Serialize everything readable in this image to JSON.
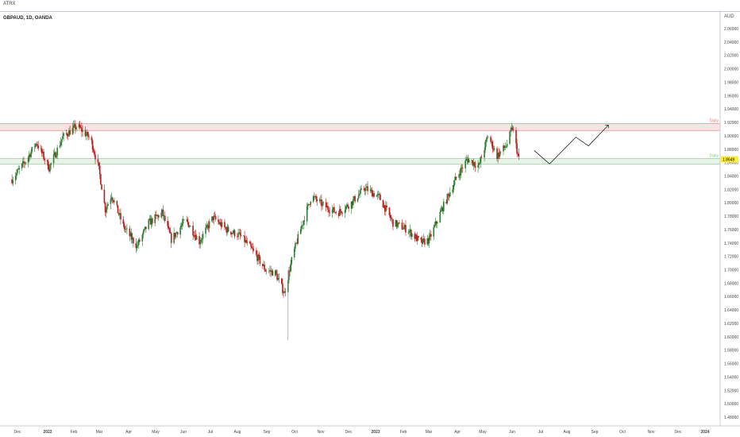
{
  "app": {
    "toolbar_label": "ATRX"
  },
  "chart_data": {
    "type": "candlestick",
    "title": "GBPAUD, 1D, OANDA",
    "currency_label": "AUD",
    "y_range": [
      1.46,
      2.08
    ],
    "y_ticks": [
      "2.06000",
      "2.04000",
      "2.02000",
      "2.00000",
      "1.98000",
      "1.96000",
      "1.94000",
      "1.92000",
      "1.90000",
      "1.88000",
      "1.86000",
      "1.84000",
      "1.82000",
      "1.80000",
      "1.78000",
      "1.76000",
      "1.74000",
      "1.72000",
      "1.70000",
      "1.68000",
      "1.66000",
      "1.64000",
      "1.62000",
      "1.60000",
      "1.58000",
      "1.56000",
      "1.54000",
      "1.52000",
      "1.50000",
      "1.48000"
    ],
    "x_ticks": [
      "Dec",
      "2022",
      "Feb",
      "Mar",
      "Apr",
      "May",
      "Jun",
      "Jul",
      "Aug",
      "Sep",
      "Oct",
      "Nov",
      "Dec",
      "2023",
      "Feb",
      "Mar",
      "Apr",
      "May",
      "Jun",
      "Jul",
      "Aug",
      "Sep",
      "Oct",
      "Nov",
      "Dec",
      "2024"
    ],
    "last_price": "1.8649",
    "price_path": [
      {
        "date": "2021-11-25",
        "price": 1.835
      },
      {
        "date": "2021-12-10",
        "price": 1.862
      },
      {
        "date": "2021-12-22",
        "price": 1.89
      },
      {
        "date": "2022-01-05",
        "price": 1.852
      },
      {
        "date": "2022-01-20",
        "price": 1.898
      },
      {
        "date": "2022-02-05",
        "price": 1.915
      },
      {
        "date": "2022-02-20",
        "price": 1.895
      },
      {
        "date": "2022-03-01",
        "price": 1.85
      },
      {
        "date": "2022-03-08",
        "price": 1.79
      },
      {
        "date": "2022-03-15",
        "price": 1.812
      },
      {
        "date": "2022-03-28",
        "price": 1.765
      },
      {
        "date": "2022-04-12",
        "price": 1.735
      },
      {
        "date": "2022-04-25",
        "price": 1.77
      },
      {
        "date": "2022-05-10",
        "price": 1.785
      },
      {
        "date": "2022-05-20",
        "price": 1.745
      },
      {
        "date": "2022-06-05",
        "price": 1.775
      },
      {
        "date": "2022-06-20",
        "price": 1.742
      },
      {
        "date": "2022-07-05",
        "price": 1.778
      },
      {
        "date": "2022-07-20",
        "price": 1.76
      },
      {
        "date": "2022-08-05",
        "price": 1.75
      },
      {
        "date": "2022-08-20",
        "price": 1.725
      },
      {
        "date": "2022-09-01",
        "price": 1.7
      },
      {
        "date": "2022-09-12",
        "price": 1.695
      },
      {
        "date": "2022-09-22",
        "price": 1.665
      },
      {
        "date": "2022-10-01",
        "price": 1.72
      },
      {
        "date": "2022-10-12",
        "price": 1.77
      },
      {
        "date": "2022-10-22",
        "price": 1.81
      },
      {
        "date": "2022-11-05",
        "price": 1.795
      },
      {
        "date": "2022-11-20",
        "price": 1.785
      },
      {
        "date": "2022-12-05",
        "price": 1.8
      },
      {
        "date": "2022-12-20",
        "price": 1.822
      },
      {
        "date": "2023-01-05",
        "price": 1.808
      },
      {
        "date": "2023-01-20",
        "price": 1.77
      },
      {
        "date": "2023-02-05",
        "price": 1.76
      },
      {
        "date": "2023-02-20",
        "price": 1.74
      },
      {
        "date": "2023-03-01",
        "price": 1.745
      },
      {
        "date": "2023-03-15",
        "price": 1.79
      },
      {
        "date": "2023-04-01",
        "price": 1.84
      },
      {
        "date": "2023-04-12",
        "price": 1.865
      },
      {
        "date": "2023-04-25",
        "price": 1.855
      },
      {
        "date": "2023-05-05",
        "price": 1.9
      },
      {
        "date": "2023-05-15",
        "price": 1.87
      },
      {
        "date": "2023-05-25",
        "price": 1.885
      },
      {
        "date": "2023-06-01",
        "price": 1.912
      },
      {
        "date": "2023-06-08",
        "price": 1.865
      }
    ],
    "long_wicks": [
      {
        "date": "2022-09-26",
        "high": 1.7,
        "low": 1.595
      }
    ],
    "horizontal_zones": [
      {
        "label": "Daily",
        "from": 1.908,
        "to": 1.918,
        "color": "#f4c7c7",
        "line": "#e57373"
      },
      {
        "label": "Daily",
        "from": 1.858,
        "to": 1.866,
        "color": "#cde8cd",
        "line": "#81c784"
      }
    ],
    "projection_path": [
      {
        "date": "2023-06-25",
        "price": 1.878
      },
      {
        "date": "2023-07-12",
        "price": 1.858
      },
      {
        "date": "2023-08-10",
        "price": 1.898
      },
      {
        "date": "2023-08-24",
        "price": 1.885
      },
      {
        "date": "2023-09-15",
        "price": 1.916
      }
    ],
    "colors": {
      "up": "#26a69a",
      "up_fill": "#2e7d32",
      "down": "#b71c1c",
      "text": "#333333"
    }
  }
}
